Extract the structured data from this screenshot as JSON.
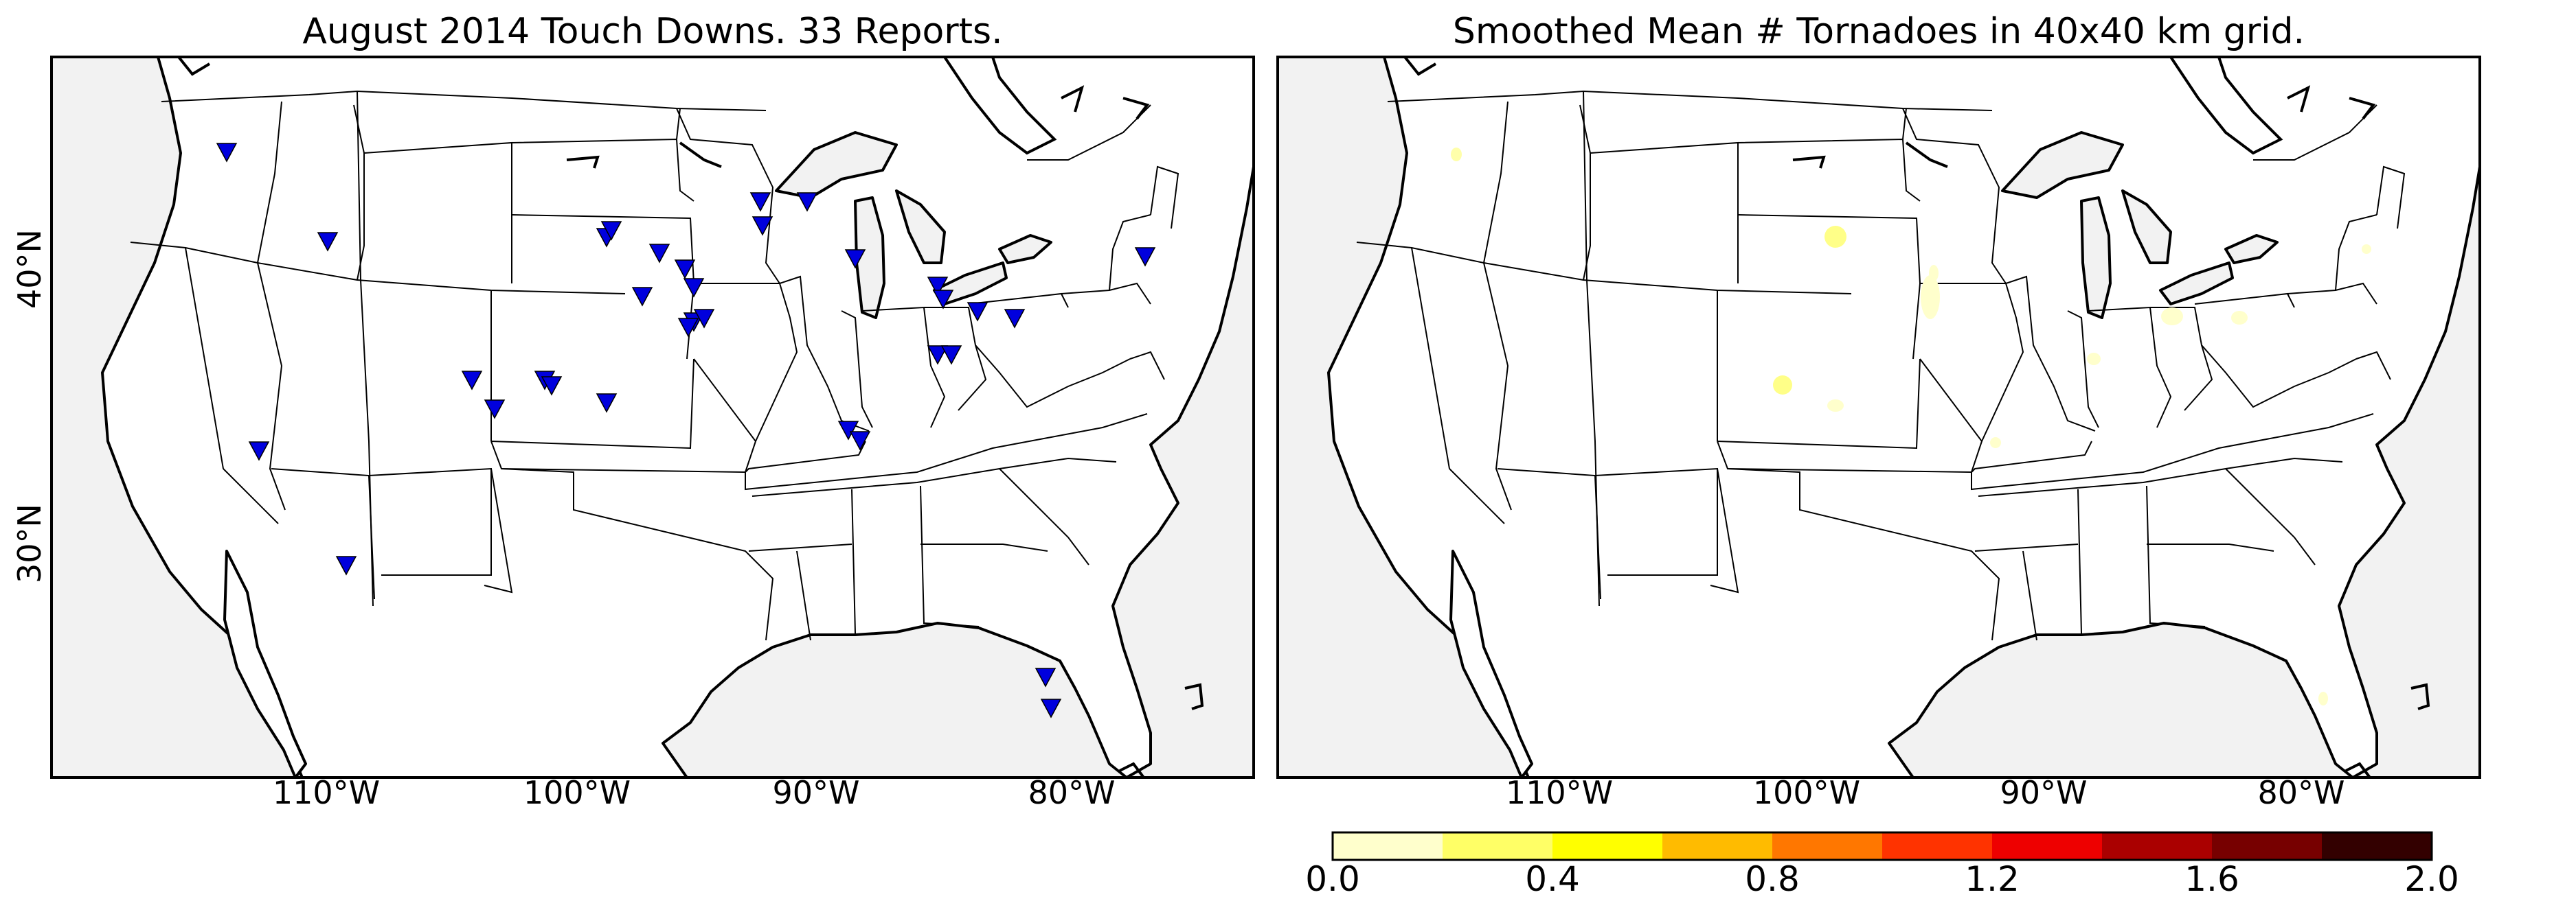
{
  "panels": {
    "left": {
      "title": "August 2014 Touch Downs. 33 Reports.",
      "ytick_labels": [
        "40°N",
        "30°N"
      ],
      "xtick_labels": [
        "110°W",
        "100°W",
        "90°W",
        "80°W"
      ]
    },
    "right": {
      "title": "Smoothed Mean # Tornadoes in 40x40 km grid.",
      "xtick_labels": [
        "110°W",
        "100°W",
        "90°W",
        "80°W"
      ]
    }
  },
  "colorbar": {
    "tick_labels": [
      "0.0",
      "0.4",
      "0.8",
      "1.2",
      "1.6",
      "2.0"
    ],
    "colors": [
      "#ffffcc",
      "#ffff66",
      "#ffff00",
      "#ffbb00",
      "#ff7700",
      "#ff3300",
      "#ee0000",
      "#aa0000",
      "#770000",
      "#330000"
    ]
  },
  "colors": {
    "marker": "#0000dd",
    "ocean": "#f2f2f2",
    "land": "#ffffff"
  },
  "marker_icon": "down-triangle"
}
